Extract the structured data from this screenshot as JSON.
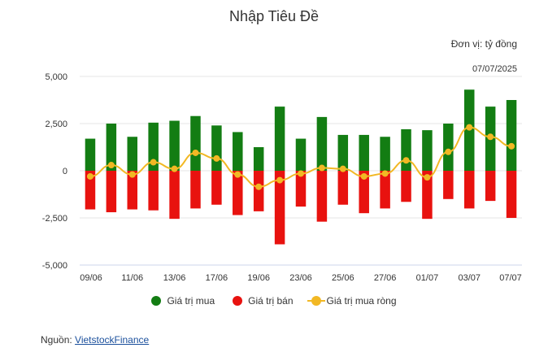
{
  "title": "Nhập Tiêu Đề",
  "unit": "Đơn vị: tỷ đồng",
  "date": "07/07/2025",
  "source": {
    "label": "Nguồn:",
    "link_text": "VietstockFinance"
  },
  "colors": {
    "buy": "#137d13",
    "sell": "#e8120f",
    "net": "#f2b824"
  },
  "chart_data": {
    "type": "bar",
    "categories": [
      "09/06",
      "10/06",
      "11/06",
      "12/06",
      "13/06",
      "16/06",
      "17/06",
      "18/06",
      "19/06",
      "20/06",
      "23/06",
      "24/06",
      "25/06",
      "26/06",
      "27/06",
      "30/06",
      "01/07",
      "02/07",
      "03/07",
      "04/07",
      "07/07"
    ],
    "x_tick_labels": [
      "09/06",
      "11/06",
      "13/06",
      "17/06",
      "19/06",
      "23/06",
      "25/06",
      "27/06",
      "01/07",
      "03/07",
      "07/07"
    ],
    "series": [
      {
        "name": "Giá trị mua",
        "type": "bar",
        "values": [
          1700,
          2500,
          1800,
          2550,
          2650,
          2900,
          2400,
          2050,
          1250,
          3400,
          1700,
          2850,
          1900,
          1900,
          1800,
          2200,
          2150,
          2500,
          4300,
          3400,
          3750
        ]
      },
      {
        "name": "Giá trị bán",
        "type": "bar",
        "values": [
          -2050,
          -2200,
          -2050,
          -2100,
          -2550,
          -2000,
          -1800,
          -2350,
          -2150,
          -3900,
          -1900,
          -2700,
          -1800,
          -2250,
          -2000,
          -1650,
          -2550,
          -1500,
          -2000,
          -1600,
          -2500
        ]
      },
      {
        "name": "Giá trị mua ròng",
        "type": "line",
        "values": [
          -300,
          300,
          -200,
          450,
          100,
          950,
          650,
          -200,
          -850,
          -500,
          -150,
          150,
          100,
          -300,
          -150,
          550,
          -350,
          1000,
          2300,
          1800,
          1300
        ]
      }
    ],
    "yticks": [
      "5,000",
      "2,500",
      "0",
      "-2,500",
      "-5,000"
    ],
    "ylim": [
      -5000,
      5000
    ],
    "legend_position": "bottom"
  }
}
